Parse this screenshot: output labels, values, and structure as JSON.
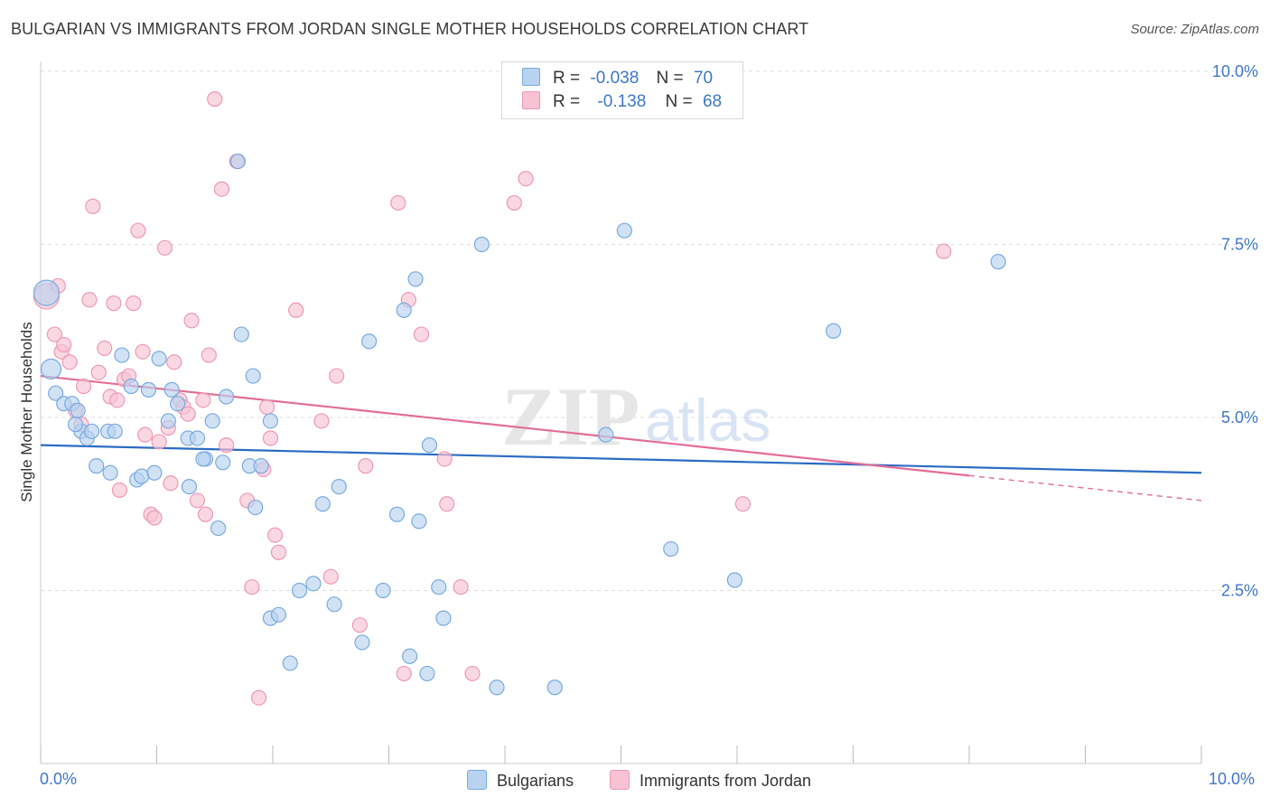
{
  "header": {
    "title": "BULGARIAN VS IMMIGRANTS FROM JORDAN SINGLE MOTHER HOUSEHOLDS CORRELATION CHART",
    "source": "Source: ZipAtlas.com"
  },
  "legend": {
    "rows": [
      {
        "r_label": "R =",
        "r_value": "-0.038",
        "n_label": "N =",
        "n_value": "70"
      },
      {
        "r_label": "R =",
        "r_value": "-0.138",
        "n_label": "N =",
        "n_value": "68"
      }
    ]
  },
  "bottom_legend": {
    "series_a": "Bulgarians",
    "series_b": "Immigrants from Jordan"
  },
  "watermark": {
    "zip": "ZIP",
    "atlas": "atlas"
  },
  "colors": {
    "blue_fill": "#b8d2f0",
    "blue_stroke": "#7aaae0",
    "blue_line": "#2b6cc4",
    "pink_fill": "#f7c3d3",
    "pink_stroke": "#ef98b4",
    "pink_line": "#e36d97",
    "accent_text": "#3d77c9",
    "grid": "#dddddd"
  },
  "chart_data": {
    "type": "scatter",
    "title": "BULGARIAN VS IMMIGRANTS FROM JORDAN SINGLE MOTHER HOUSEHOLDS CORRELATION CHART",
    "xlabel": "",
    "ylabel": "Single Mother Households",
    "xlim": [
      0,
      10
    ],
    "ylim": [
      0,
      10
    ],
    "x_tick_labels": [
      "0.0%",
      "10.0%"
    ],
    "y_ticks": [
      2.5,
      5.0,
      7.5,
      10.0
    ],
    "y_tick_labels": [
      "2.5%",
      "5.0%",
      "7.5%",
      "10.0%"
    ],
    "grid": true,
    "legend_position": "top-center",
    "series": [
      {
        "name": "Bulgarians",
        "r": -0.038,
        "n": 70,
        "trend": {
          "x0": 0,
          "y0": 4.6,
          "x1": 10,
          "y1": 4.2
        },
        "points": [
          [
            0.05,
            6.8
          ],
          [
            0.09,
            5.7
          ],
          [
            0.13,
            5.35
          ],
          [
            0.2,
            5.2
          ],
          [
            0.27,
            5.2
          ],
          [
            0.32,
            5.1
          ],
          [
            0.35,
            4.8
          ],
          [
            0.4,
            4.7
          ],
          [
            0.44,
            4.8
          ],
          [
            0.48,
            4.3
          ],
          [
            0.58,
            4.8
          ],
          [
            0.6,
            4.2
          ],
          [
            0.64,
            4.8
          ],
          [
            0.7,
            5.9
          ],
          [
            0.78,
            5.45
          ],
          [
            0.83,
            4.1
          ],
          [
            0.87,
            4.15
          ],
          [
            0.93,
            5.4
          ],
          [
            0.98,
            4.2
          ],
          [
            1.02,
            5.85
          ],
          [
            1.1,
            4.95
          ],
          [
            1.13,
            5.4
          ],
          [
            1.18,
            5.2
          ],
          [
            1.27,
            4.7
          ],
          [
            1.28,
            4.0
          ],
          [
            1.35,
            4.7
          ],
          [
            1.42,
            4.4
          ],
          [
            1.48,
            4.95
          ],
          [
            1.53,
            3.4
          ],
          [
            1.57,
            4.35
          ],
          [
            1.6,
            5.3
          ],
          [
            1.7,
            8.7
          ],
          [
            1.73,
            6.2
          ],
          [
            1.8,
            4.3
          ],
          [
            1.83,
            5.6
          ],
          [
            1.85,
            3.7
          ],
          [
            1.9,
            4.3
          ],
          [
            1.98,
            4.95
          ],
          [
            1.98,
            2.1
          ],
          [
            2.05,
            2.15
          ],
          [
            2.15,
            1.45
          ],
          [
            2.23,
            2.5
          ],
          [
            2.35,
            2.6
          ],
          [
            2.43,
            3.75
          ],
          [
            2.53,
            2.3
          ],
          [
            2.57,
            4.0
          ],
          [
            2.77,
            1.75
          ],
          [
            2.83,
            6.1
          ],
          [
            2.95,
            2.5
          ],
          [
            3.07,
            3.6
          ],
          [
            3.13,
            6.55
          ],
          [
            3.18,
            1.55
          ],
          [
            3.23,
            7.0
          ],
          [
            3.26,
            3.5
          ],
          [
            3.33,
            1.3
          ],
          [
            3.35,
            4.6
          ],
          [
            3.43,
            2.55
          ],
          [
            3.47,
            2.1
          ],
          [
            3.8,
            7.5
          ],
          [
            3.93,
            1.1
          ],
          [
            4.2,
            10.0
          ],
          [
            4.43,
            1.1
          ],
          [
            4.87,
            4.75
          ],
          [
            5.03,
            7.7
          ],
          [
            5.43,
            3.1
          ],
          [
            5.98,
            2.65
          ],
          [
            6.83,
            6.25
          ],
          [
            8.25,
            7.25
          ],
          [
            0.3,
            4.9
          ],
          [
            1.4,
            4.4
          ]
        ]
      },
      {
        "name": "Immigrants from Jordan",
        "r": -0.138,
        "n": 68,
        "trend": {
          "x0": 0,
          "y0": 5.6,
          "x1": 10,
          "y1": 3.8,
          "solid_until_x": 8.0
        },
        "points": [
          [
            0.05,
            6.75
          ],
          [
            0.12,
            6.2
          ],
          [
            0.18,
            5.95
          ],
          [
            0.2,
            6.05
          ],
          [
            0.25,
            5.8
          ],
          [
            0.3,
            5.1
          ],
          [
            0.35,
            4.9
          ],
          [
            0.37,
            5.45
          ],
          [
            0.42,
            6.7
          ],
          [
            0.45,
            8.05
          ],
          [
            0.5,
            5.65
          ],
          [
            0.55,
            6.0
          ],
          [
            0.6,
            5.3
          ],
          [
            0.63,
            6.65
          ],
          [
            0.66,
            5.25
          ],
          [
            0.68,
            3.95
          ],
          [
            0.72,
            5.55
          ],
          [
            0.76,
            5.6
          ],
          [
            0.8,
            6.65
          ],
          [
            0.84,
            7.7
          ],
          [
            0.88,
            5.95
          ],
          [
            0.9,
            4.75
          ],
          [
            0.95,
            3.6
          ],
          [
            0.98,
            3.55
          ],
          [
            1.02,
            4.65
          ],
          [
            1.07,
            7.45
          ],
          [
            1.12,
            4.05
          ],
          [
            1.15,
            5.8
          ],
          [
            1.2,
            5.25
          ],
          [
            1.23,
            5.15
          ],
          [
            1.27,
            5.05
          ],
          [
            1.3,
            6.4
          ],
          [
            1.35,
            3.8
          ],
          [
            1.4,
            5.25
          ],
          [
            1.42,
            3.6
          ],
          [
            1.45,
            5.9
          ],
          [
            1.5,
            9.6
          ],
          [
            1.56,
            8.3
          ],
          [
            1.6,
            4.6
          ],
          [
            1.69,
            8.7
          ],
          [
            1.78,
            3.8
          ],
          [
            1.82,
            2.55
          ],
          [
            1.88,
            0.95
          ],
          [
            1.92,
            4.25
          ],
          [
            1.95,
            5.15
          ],
          [
            1.98,
            4.7
          ],
          [
            2.02,
            3.3
          ],
          [
            2.05,
            3.05
          ],
          [
            2.2,
            6.55
          ],
          [
            2.42,
            4.95
          ],
          [
            2.5,
            2.7
          ],
          [
            2.55,
            5.6
          ],
          [
            2.75,
            2.0
          ],
          [
            2.8,
            4.3
          ],
          [
            3.08,
            8.1
          ],
          [
            3.13,
            1.3
          ],
          [
            3.17,
            6.7
          ],
          [
            3.28,
            6.2
          ],
          [
            3.48,
            4.4
          ],
          [
            3.5,
            3.75
          ],
          [
            3.62,
            2.55
          ],
          [
            3.72,
            1.3
          ],
          [
            4.08,
            8.1
          ],
          [
            4.18,
            8.45
          ],
          [
            6.05,
            3.75
          ],
          [
            7.78,
            7.4
          ],
          [
            0.15,
            6.9
          ],
          [
            1.1,
            4.85
          ]
        ]
      }
    ]
  }
}
